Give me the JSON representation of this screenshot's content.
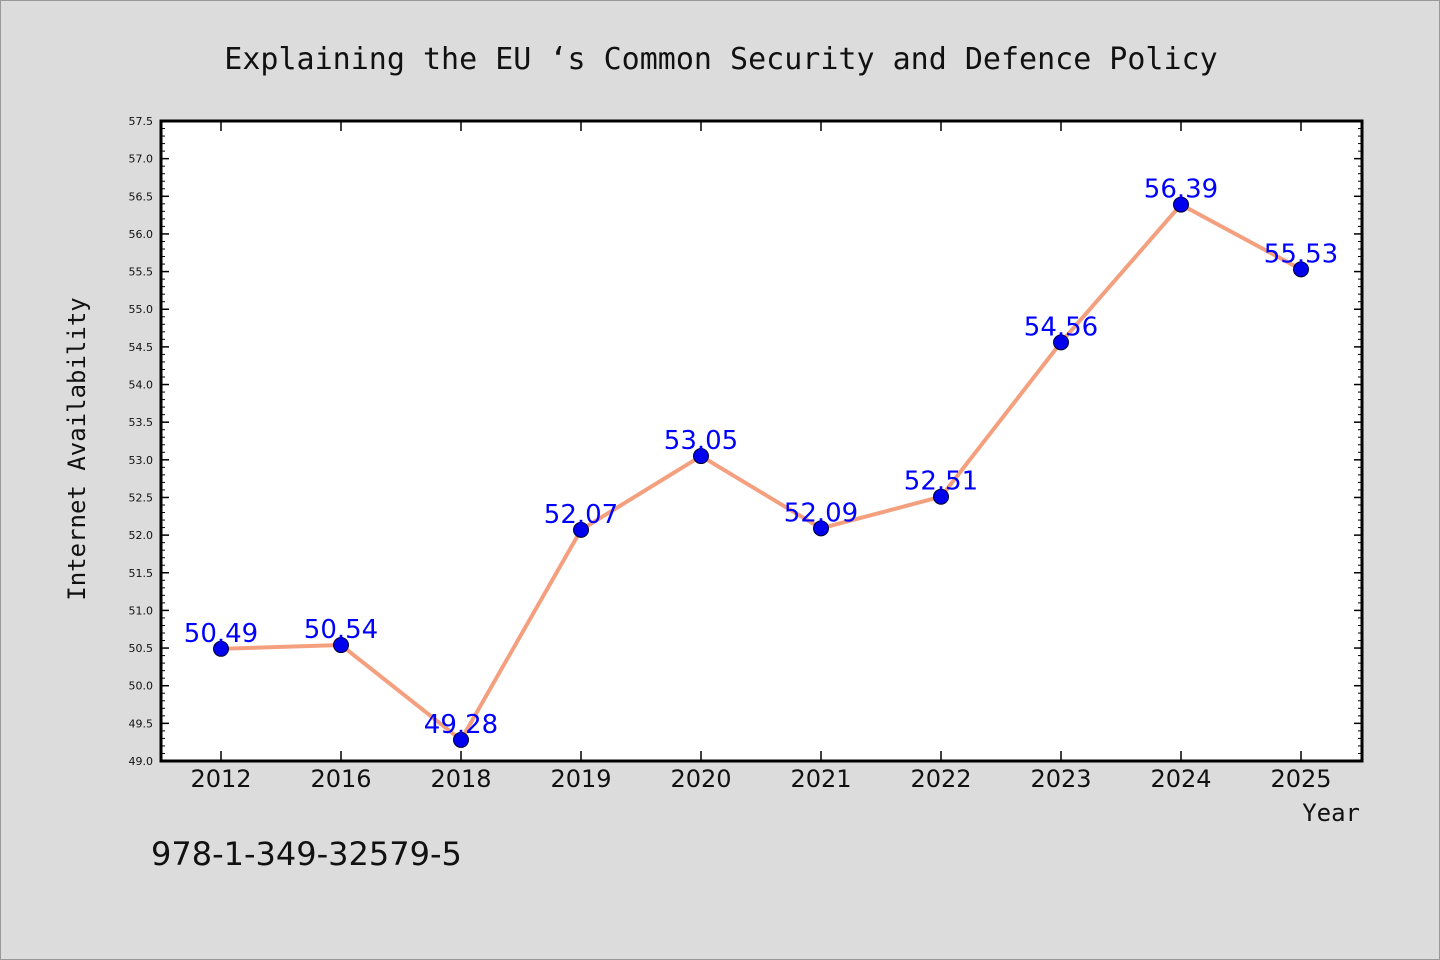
{
  "chart_data": {
    "type": "line",
    "title": "Explaining the EU ‘s Common Security and Defence Policy",
    "xlabel": "Year",
    "ylabel": "Internet Availability",
    "categories": [
      "2012",
      "2016",
      "2018",
      "2019",
      "2020",
      "2021",
      "2022",
      "2023",
      "2024",
      "2025"
    ],
    "series": [
      {
        "values": [
          50.49,
          50.54,
          49.28,
          52.07,
          53.05,
          52.09,
          52.51,
          54.56,
          56.39,
          55.53
        ],
        "labels": [
          "50.49",
          "50.54",
          "49.28",
          "52.07",
          "53.05",
          "52.09",
          "52.51",
          "54.56",
          "56.39",
          "55.53"
        ],
        "line_color": "#f4a07f",
        "marker_color": "#0000ee"
      }
    ],
    "yticks": [
      "49.0",
      "49.5",
      "50.0",
      "50.5",
      "51.0",
      "51.5",
      "52.0",
      "52.5",
      "53.0",
      "53.5",
      "54.0",
      "54.5",
      "55.0",
      "55.5",
      "56.0",
      "56.5",
      "57.0",
      "57.5"
    ],
    "ylim": [
      49.0,
      57.5
    ],
    "grid": false,
    "legend": "none"
  },
  "footer": {
    "isbn": "978-1-349-32579-5"
  }
}
